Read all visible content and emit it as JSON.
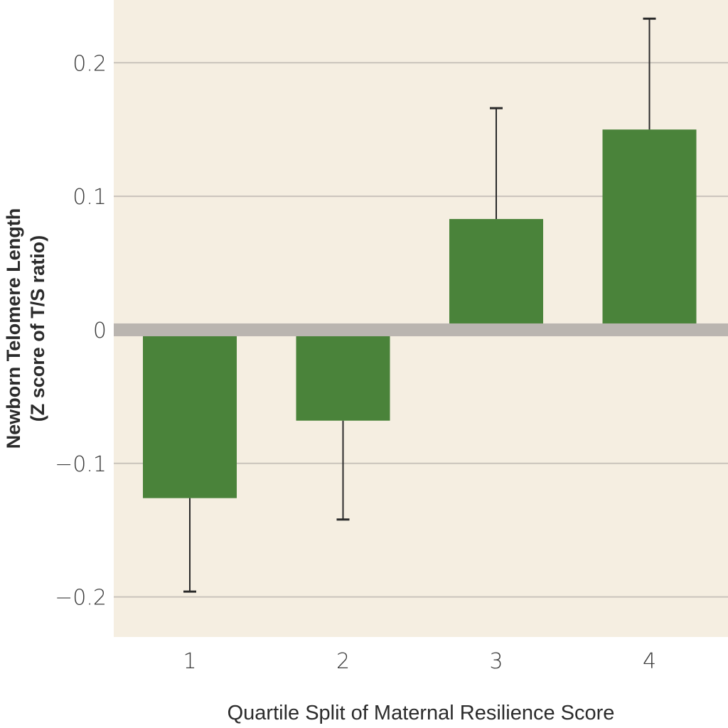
{
  "chart_data": {
    "type": "bar",
    "categories": [
      "1",
      "2",
      "3",
      "4"
    ],
    "values": [
      -0.126,
      -0.068,
      0.083,
      0.15
    ],
    "error_upper": [
      null,
      null,
      0.166,
      0.233
    ],
    "error_lower": [
      -0.196,
      -0.142,
      null,
      null
    ],
    "title": "",
    "xlabel": "Quartile Split of Maternal Resilience Score",
    "ylabel_line1": "Newborn Telomere Length",
    "ylabel_line2": "(Z score of T/S ratio)",
    "yticks": [
      -0.2,
      -0.1,
      0,
      0.1,
      0.2
    ],
    "ytick_labels": [
      "−0.2",
      "−0.1",
      "0",
      "0.1",
      "0.2"
    ],
    "ylim": [
      -0.23,
      0.247
    ],
    "grid": true,
    "colors": {
      "bar": "#4a833a",
      "plot_background": "#f5eee1",
      "zero_line": "#bab5b0",
      "gridline": "#c9c3bb",
      "error_bar": "#2a2a2a"
    }
  }
}
